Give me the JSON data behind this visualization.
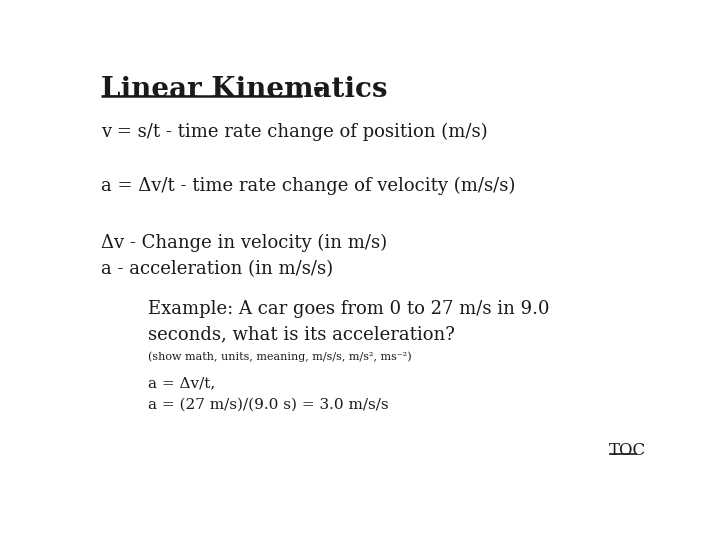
{
  "bg_color": "#ffffff",
  "title_bold": "Linear Kinematics",
  "title_dash": " -",
  "line1": "v = s/t - time rate change of position (m/s)",
  "line2": "a = Δv/t - time rate change of velocity (m/s/s)",
  "line3": "Δv - Change in velocity (in m/s)",
  "line4": "a - acceleration (in m/s/s)",
  "line5a": "Example: A car goes from 0 to 27 m/s in 9.0",
  "line5b": "seconds, what is its acceleration?",
  "line6": "(show math, units, meaning, m/s/s, m/s², ms⁻²)",
  "line7": "a = Δv/t,",
  "line8": "a = (27 m/s)/(9.0 s) = 3.0 m/s/s",
  "toc": "TOC",
  "font_color": "#1a1a1a",
  "title_size": 20,
  "body_size": 13,
  "example_size": 13,
  "small_size": 8,
  "answer_size": 11,
  "toc_size": 12
}
